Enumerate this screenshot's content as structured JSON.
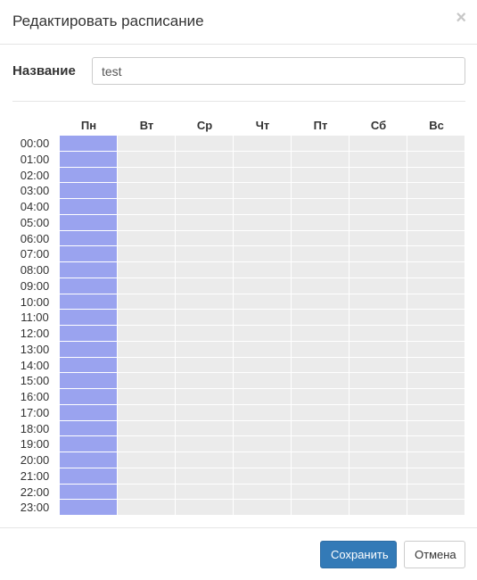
{
  "modal": {
    "title": "Редактировать расписание",
    "close_glyph": "×"
  },
  "form": {
    "name_label": "Название",
    "name_value": "test"
  },
  "schedule": {
    "days": [
      "Пн",
      "Вт",
      "Ср",
      "Чт",
      "Пт",
      "Сб",
      "Вс"
    ],
    "hours": [
      "00:00",
      "01:00",
      "02:00",
      "03:00",
      "04:00",
      "05:00",
      "06:00",
      "07:00",
      "08:00",
      "09:00",
      "10:00",
      "11:00",
      "12:00",
      "13:00",
      "14:00",
      "15:00",
      "16:00",
      "17:00",
      "18:00",
      "19:00",
      "20:00",
      "21:00",
      "22:00",
      "23:00"
    ],
    "selected_days": [
      0
    ],
    "selected_color": "#9aa3ef",
    "empty_color": "#ebebeb"
  },
  "footer": {
    "save_label": "Сохранить",
    "cancel_label": "Отмена"
  }
}
